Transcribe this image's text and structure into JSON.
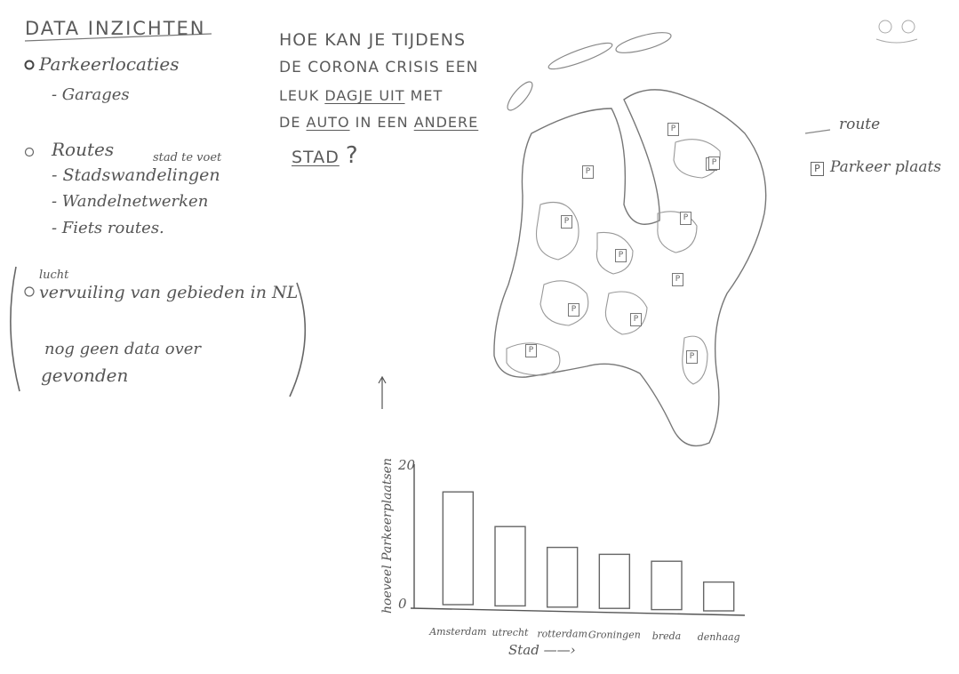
{
  "notes": {
    "title": "DATA INZICHTEN",
    "item1": "Parkeerlocaties",
    "item1_sub": "- Garages",
    "item2": "Routes",
    "item2_note": "stad te voet",
    "item2_sub1": "- Stadswandelingen",
    "item2_sub2": "- Wandelnetwerken",
    "item2_sub3": "- Fiets routes.",
    "item3_note": "lucht",
    "item3": "vervuiling van gebieden in NL",
    "item3_sub1": "nog geen data over",
    "item3_sub2": "gevonden"
  },
  "question": {
    "line1": "HOE KAN JE TIJDENS",
    "line2": "DE CORONA CRISIS EEN",
    "line3_pre": "LEUK ",
    "line3_ul": "DAGJE UIT",
    "line3_post": " MET",
    "line4_pre": "DE ",
    "line4_ul1": "AUTO",
    "line4_mid": " IN EEN ",
    "line4_ul2": "ANDERE",
    "line5": "STAD",
    "line5_mark": "?"
  },
  "legend": {
    "route": "route",
    "parking": "Parkeer plaats",
    "parking_symbol": "P"
  },
  "map": {
    "marker_label": "P",
    "marker_count": 12
  },
  "chart_data": {
    "type": "bar",
    "categories": [
      "Amsterdam",
      "utrecht",
      "rotterdam",
      "Groningen",
      "breda",
      "denhaag"
    ],
    "values": [
      16,
      11,
      8,
      7,
      6,
      3
    ],
    "ylabel": "hoeveel Parkeerplaatsen",
    "xlabel": "Stad",
    "ylim": [
      0,
      20
    ],
    "yticks": [
      0,
      20
    ]
  }
}
